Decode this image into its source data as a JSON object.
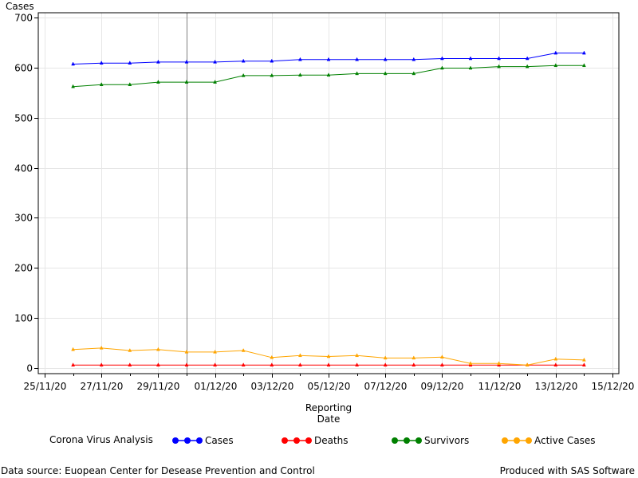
{
  "chart_data": {
    "type": "line",
    "ylabel": "Cases",
    "xlabel": [
      "Reporting",
      "Date"
    ],
    "ylim": [
      0,
      700
    ],
    "xlim": [
      "2020-11-25",
      "2020-12-15"
    ],
    "yticks": [
      0,
      100,
      200,
      300,
      400,
      500,
      600,
      700
    ],
    "xticks": [
      "25/11/20",
      "27/11/20",
      "29/11/20",
      "01/12/20",
      "03/12/20",
      "05/12/20",
      "07/12/20",
      "09/12/20",
      "11/12/20",
      "13/12/20",
      "15/12/20"
    ],
    "x": [
      "2020-11-26",
      "2020-11-27",
      "2020-11-28",
      "2020-11-29",
      "2020-11-30",
      "2020-12-01",
      "2020-12-02",
      "2020-12-03",
      "2020-12-04",
      "2020-12-05",
      "2020-12-06",
      "2020-12-07",
      "2020-12-08",
      "2020-12-09",
      "2020-12-10",
      "2020-12-11",
      "2020-12-12",
      "2020-12-13",
      "2020-12-14"
    ],
    "grid": true,
    "reference_line_x": "2020-11-30",
    "series": [
      {
        "name": "Cases",
        "color": "#0000ff",
        "values": [
          607,
          609,
          609,
          611,
          611,
          611,
          613,
          613,
          616,
          616,
          616,
          616,
          616,
          618,
          618,
          618,
          618,
          629,
          629
        ]
      },
      {
        "name": "Deaths",
        "color": "#ff0000",
        "values": [
          6,
          6,
          6,
          6,
          6,
          6,
          6,
          6,
          6,
          6,
          6,
          6,
          6,
          6,
          6,
          6,
          6,
          6,
          6
        ]
      },
      {
        "name": "Survivors",
        "color": "#008000",
        "values": [
          562,
          566,
          566,
          571,
          571,
          571,
          584,
          584,
          585,
          585,
          588,
          588,
          588,
          599,
          599,
          602,
          602,
          604,
          604
        ]
      },
      {
        "name": "Active Cases",
        "color": "#ffa500",
        "values": [
          37,
          40,
          35,
          37,
          32,
          32,
          35,
          21,
          25,
          23,
          25,
          20,
          20,
          22,
          9,
          9,
          6,
          18,
          16
        ]
      }
    ]
  },
  "legend": {
    "title": "Corona Virus Analysis",
    "items": [
      {
        "label": "Cases",
        "color": "#0000ff"
      },
      {
        "label": "Deaths",
        "color": "#ff0000"
      },
      {
        "label": "Survivors",
        "color": "#008000"
      },
      {
        "label": "Active Cases",
        "color": "#ffa500"
      }
    ]
  },
  "footer": {
    "source": "Data source: Euopean Center for Desease Prevention and Control",
    "produced": "Produced with SAS Software"
  }
}
